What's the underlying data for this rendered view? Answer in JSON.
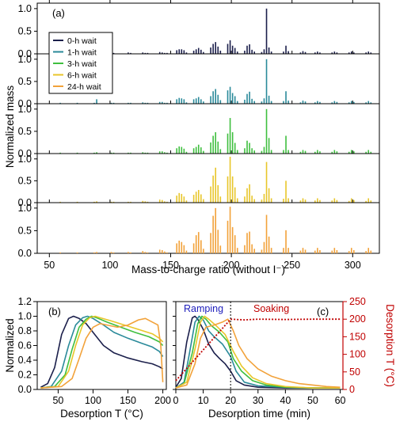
{
  "chart_data": [
    {
      "type": "bar",
      "panel_label": "(a)",
      "xlabel": "Mass-to-charge ratio (without I⁻)",
      "ylabel": "Normalized mass",
      "xlim": [
        40,
        322
      ],
      "ylim": [
        0,
        1.05
      ],
      "x_ticks": [
        50,
        100,
        150,
        200,
        250,
        300
      ],
      "y_ticks": [
        0.0,
        0.5,
        1.0
      ],
      "legend": {
        "position": "top-left",
        "entries": [
          "0-h wait",
          "1-h wait",
          "3-h wait",
          "6-h wait",
          "24-h wait"
        ]
      },
      "x": [
        59,
        73,
        87,
        89,
        101,
        103,
        115,
        117,
        127,
        129,
        131,
        141,
        143,
        145,
        147,
        155,
        157,
        159,
        161,
        163,
        169,
        171,
        173,
        175,
        177,
        183,
        185,
        187,
        189,
        191,
        197,
        199,
        201,
        203,
        205,
        211,
        213,
        215,
        217,
        219,
        225,
        227,
        229,
        231,
        233,
        243,
        245,
        247,
        257,
        259,
        261,
        269,
        271,
        273,
        283,
        285,
        287,
        297,
        299,
        301,
        311,
        313,
        315
      ],
      "series": [
        {
          "name": "0-h wait",
          "color": "#1b1f4b",
          "values": [
            0.02,
            0.02,
            0.02,
            0.02,
            0.03,
            0.02,
            0.03,
            0.02,
            0.03,
            0.02,
            0.02,
            0.04,
            0.03,
            0.02,
            0.02,
            0.08,
            0.1,
            0.1,
            0.08,
            0.03,
            0.07,
            0.1,
            0.13,
            0.09,
            0.04,
            0.14,
            0.22,
            0.26,
            0.16,
            0.07,
            0.22,
            0.3,
            0.18,
            0.13,
            0.05,
            0.07,
            0.18,
            0.21,
            0.09,
            0.05,
            0.04,
            0.1,
            1.0,
            0.14,
            0.05,
            0.05,
            0.18,
            0.06,
            0.03,
            0.06,
            0.04,
            0.03,
            0.05,
            0.03,
            0.03,
            0.05,
            0.03,
            0.03,
            0.05,
            0.03,
            0.03,
            0.05,
            0.03
          ]
        },
        {
          "name": "1-h wait",
          "color": "#2a8a9a",
          "values": [
            0.02,
            0.02,
            0.02,
            0.1,
            0.02,
            0.02,
            0.02,
            0.02,
            0.03,
            0.02,
            0.02,
            0.04,
            0.04,
            0.02,
            0.02,
            0.1,
            0.13,
            0.12,
            0.1,
            0.03,
            0.1,
            0.12,
            0.15,
            0.1,
            0.05,
            0.17,
            0.28,
            0.33,
            0.2,
            0.08,
            0.3,
            0.38,
            0.24,
            0.17,
            0.06,
            0.09,
            0.22,
            0.27,
            0.11,
            0.06,
            0.05,
            0.12,
            1.0,
            0.18,
            0.06,
            0.06,
            0.28,
            0.07,
            0.03,
            0.07,
            0.05,
            0.03,
            0.06,
            0.04,
            0.03,
            0.06,
            0.04,
            0.03,
            0.06,
            0.04,
            0.03,
            0.06,
            0.03
          ]
        },
        {
          "name": "3-h wait",
          "color": "#3fbf3f",
          "values": [
            0.02,
            0.02,
            0.02,
            0.03,
            0.02,
            0.02,
            0.02,
            0.02,
            0.03,
            0.02,
            0.02,
            0.05,
            0.05,
            0.03,
            0.02,
            0.12,
            0.16,
            0.15,
            0.11,
            0.04,
            0.12,
            0.15,
            0.2,
            0.14,
            0.06,
            0.25,
            0.4,
            0.48,
            0.27,
            0.1,
            0.45,
            0.8,
            0.48,
            0.24,
            0.08,
            0.12,
            0.29,
            0.24,
            0.12,
            0.07,
            0.06,
            0.15,
            1.0,
            0.35,
            0.08,
            0.08,
            0.4,
            0.08,
            0.04,
            0.08,
            0.06,
            0.04,
            0.08,
            0.05,
            0.04,
            0.08,
            0.05,
            0.04,
            0.08,
            0.05,
            0.04,
            0.08,
            0.04
          ]
        },
        {
          "name": "6-h wait",
          "color": "#e8c62a",
          "values": [
            0.02,
            0.02,
            0.02,
            0.03,
            0.02,
            0.02,
            0.02,
            0.02,
            0.04,
            0.03,
            0.02,
            0.07,
            0.06,
            0.03,
            0.02,
            0.16,
            0.22,
            0.2,
            0.14,
            0.05,
            0.18,
            0.25,
            0.29,
            0.19,
            0.08,
            0.37,
            0.62,
            0.8,
            0.4,
            0.14,
            0.6,
            1.05,
            0.6,
            0.35,
            0.1,
            0.14,
            0.33,
            0.42,
            0.16,
            0.08,
            0.07,
            0.2,
            0.93,
            0.33,
            0.1,
            0.09,
            0.5,
            0.1,
            0.05,
            0.1,
            0.07,
            0.05,
            0.1,
            0.06,
            0.05,
            0.1,
            0.06,
            0.04,
            0.1,
            0.06,
            0.04,
            0.1,
            0.05
          ]
        },
        {
          "name": "24-h wait",
          "color": "#f2a23a",
          "values": [
            0.02,
            0.02,
            0.02,
            0.03,
            0.03,
            0.02,
            0.03,
            0.02,
            0.05,
            0.03,
            0.02,
            0.08,
            0.07,
            0.04,
            0.02,
            0.22,
            0.28,
            0.25,
            0.18,
            0.06,
            0.22,
            0.4,
            0.47,
            0.29,
            0.1,
            0.45,
            0.83,
            1.0,
            0.52,
            0.17,
            0.72,
            1.03,
            0.58,
            0.4,
            0.12,
            0.18,
            0.45,
            0.48,
            0.2,
            0.1,
            0.08,
            0.25,
            0.85,
            0.37,
            0.12,
            0.12,
            0.51,
            0.12,
            0.06,
            0.12,
            0.08,
            0.06,
            0.12,
            0.07,
            0.06,
            0.12,
            0.07,
            0.05,
            0.12,
            0.07,
            0.05,
            0.12,
            0.06
          ]
        }
      ]
    },
    {
      "type": "line",
      "panel_label": "(b)",
      "xlabel": "Desorption T (°C)",
      "ylabel": "Normalized",
      "xlim": [
        20,
        205
      ],
      "ylim": [
        0,
        1.2
      ],
      "x_ticks": [
        50,
        100,
        150,
        200
      ],
      "y_ticks": [
        0.0,
        0.2,
        0.4,
        0.6,
        0.8,
        1.0,
        1.2
      ],
      "series": [
        {
          "name": "0-h wait",
          "color": "#1b1f4b",
          "x": [
            25,
            35,
            45,
            55,
            65,
            72,
            80,
            90,
            100,
            115,
            130,
            150,
            170,
            185,
            195,
            200
          ],
          "y": [
            0.03,
            0.08,
            0.3,
            0.75,
            0.97,
            1.0,
            0.97,
            0.9,
            0.78,
            0.6,
            0.5,
            0.43,
            0.38,
            0.35,
            0.31,
            0.28
          ]
        },
        {
          "name": "1-h wait",
          "color": "#2a8a9a",
          "x": [
            25,
            40,
            55,
            65,
            75,
            85,
            92,
            100,
            115,
            130,
            150,
            170,
            185,
            195,
            200
          ],
          "y": [
            0.02,
            0.04,
            0.25,
            0.6,
            0.88,
            0.98,
            1.0,
            0.97,
            0.88,
            0.78,
            0.7,
            0.63,
            0.58,
            0.52,
            0.45
          ]
        },
        {
          "name": "3-h wait",
          "color": "#3fbf3f",
          "x": [
            25,
            45,
            60,
            70,
            80,
            90,
            98,
            105,
            120,
            140,
            160,
            180,
            195,
            200
          ],
          "y": [
            0.02,
            0.04,
            0.2,
            0.55,
            0.85,
            0.96,
            1.0,
            0.98,
            0.92,
            0.85,
            0.78,
            0.72,
            0.65,
            0.6
          ]
        },
        {
          "name": "6-h wait",
          "color": "#e8c62a",
          "x": [
            25,
            50,
            65,
            75,
            85,
            95,
            103,
            110,
            125,
            145,
            165,
            185,
            195,
            200
          ],
          "y": [
            0.02,
            0.04,
            0.25,
            0.6,
            0.88,
            0.98,
            1.0,
            0.98,
            0.94,
            0.88,
            0.82,
            0.76,
            0.7,
            0.65
          ]
        },
        {
          "name": "24-h wait",
          "color": "#f2a23a",
          "x": [
            25,
            55,
            70,
            80,
            90,
            100,
            110,
            120,
            135,
            150,
            165,
            175,
            185,
            193,
            197,
            200
          ],
          "y": [
            0.02,
            0.04,
            0.15,
            0.42,
            0.7,
            0.85,
            0.9,
            0.88,
            0.85,
            0.88,
            0.95,
            0.97,
            0.92,
            0.88,
            0.6,
            0.1
          ]
        }
      ]
    },
    {
      "type": "line",
      "panel_label": "(c)",
      "xlabel": "Desorption time (min)",
      "ylabel": "",
      "y2label": "Desorption T (°C)",
      "xlim": [
        0,
        61
      ],
      "ylim": [
        0,
        1.2
      ],
      "y2lim": [
        0,
        250
      ],
      "x_ticks": [
        0,
        10,
        20,
        30,
        40,
        50,
        60
      ],
      "y2_ticks": [
        0,
        50,
        100,
        150,
        200,
        250
      ],
      "vline_x": 20,
      "annotations": [
        "Ramping",
        "Soaking"
      ],
      "series": [
        {
          "name": "0-h wait",
          "color": "#1b1f4b",
          "x": [
            0,
            2,
            4,
            6,
            7,
            8,
            10,
            12,
            14,
            16,
            18,
            20,
            22,
            25,
            30,
            40,
            50,
            60
          ],
          "y": [
            0.03,
            0.15,
            0.65,
            0.98,
            1.0,
            0.96,
            0.82,
            0.62,
            0.5,
            0.42,
            0.35,
            0.25,
            0.12,
            0.06,
            0.03,
            0.02,
            0.02,
            0.02
          ]
        },
        {
          "name": "1-h wait",
          "color": "#2a8a9a",
          "x": [
            0,
            3,
            5,
            7,
            8.5,
            10,
            12,
            14,
            17,
            20,
            22,
            25,
            30,
            40,
            50,
            60
          ],
          "y": [
            0.02,
            0.1,
            0.5,
            0.92,
            1.0,
            0.95,
            0.8,
            0.72,
            0.62,
            0.45,
            0.25,
            0.1,
            0.05,
            0.03,
            0.02,
            0.02
          ]
        },
        {
          "name": "3-h wait",
          "color": "#3fbf3f",
          "x": [
            0,
            3,
            6,
            8,
            9.5,
            11,
            13,
            16,
            19,
            21,
            24,
            28,
            33,
            40,
            50,
            60
          ],
          "y": [
            0.02,
            0.08,
            0.5,
            0.9,
            1.0,
            0.96,
            0.87,
            0.78,
            0.65,
            0.42,
            0.25,
            0.12,
            0.06,
            0.03,
            0.02,
            0.02
          ]
        },
        {
          "name": "6-h wait",
          "color": "#e8c62a",
          "x": [
            0,
            4,
            7,
            9,
            10.5,
            12,
            15,
            18,
            21,
            24,
            28,
            33,
            40,
            50,
            60
          ],
          "y": [
            0.02,
            0.1,
            0.55,
            0.92,
            1.0,
            0.96,
            0.86,
            0.75,
            0.52,
            0.32,
            0.16,
            0.08,
            0.04,
            0.02,
            0.02
          ]
        },
        {
          "name": "24-h wait",
          "color": "#f2a23a",
          "x": [
            0,
            4,
            7,
            9,
            11,
            14,
            17,
            19,
            21,
            23,
            26,
            30,
            35,
            40,
            45,
            50,
            55,
            60
          ],
          "y": [
            0.02,
            0.06,
            0.35,
            0.7,
            0.85,
            0.88,
            0.92,
            0.96,
            0.8,
            0.6,
            0.42,
            0.28,
            0.18,
            0.12,
            0.08,
            0.06,
            0.04,
            0.03
          ]
        },
        {
          "name": "Desorption T",
          "color": "#c00000",
          "axis": "right",
          "dashed": true,
          "x": [
            0,
            20,
            25,
            30,
            40,
            50,
            60
          ],
          "y": [
            25,
            200,
            198,
            200,
            199,
            200,
            200
          ]
        }
      ]
    }
  ],
  "colors": {
    "temperature": "#c00000",
    "ramping_label": "#1d1dbb",
    "soaking_label": "#c00000"
  }
}
